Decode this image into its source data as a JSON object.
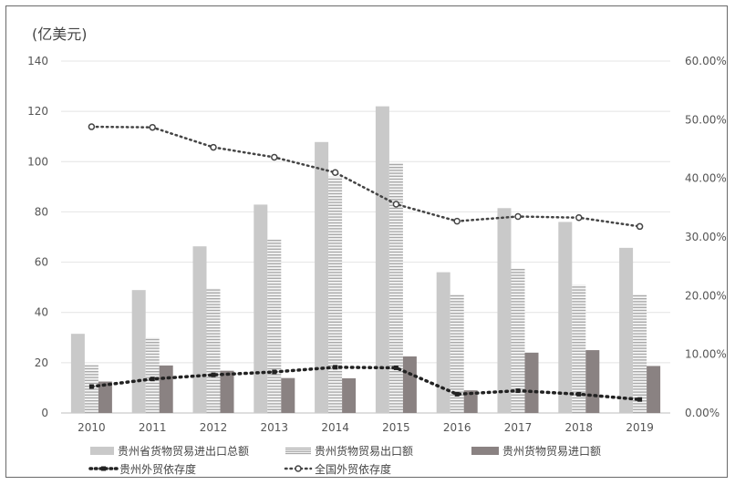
{
  "chart_data": {
    "type": "bar",
    "unit_label": "(亿美元)",
    "categories": [
      "2010",
      "2011",
      "2012",
      "2013",
      "2014",
      "2015",
      "2016",
      "2017",
      "2018",
      "2019"
    ],
    "ylim": [
      0,
      140
    ],
    "y_ticks": [
      "0",
      "20",
      "40",
      "60",
      "80",
      "100",
      "120",
      "140"
    ],
    "y2lim": [
      0,
      60
    ],
    "y2_ticks": [
      "0.00%",
      "10.00%",
      "20.00%",
      "30.00%",
      "40.00%",
      "50.00%",
      "60.00%"
    ],
    "grid": true,
    "legend_position": "bottom",
    "bar_series": [
      {
        "name": "贵州省货物贸易进出口总额",
        "style": "light-solid",
        "color": "#c9c9c9",
        "values": [
          31.5,
          48.9,
          66.3,
          82.9,
          107.8,
          122.0,
          56.0,
          81.5,
          76.0,
          65.7
        ]
      },
      {
        "name": "贵州货物贸易出口额",
        "style": "striped",
        "color": "#bdbdbd",
        "values": [
          19.0,
          30.0,
          49.5,
          69.0,
          94.0,
          99.5,
          47.0,
          57.5,
          51.0,
          47.0
        ]
      },
      {
        "name": "贵州货物贸易进口额",
        "style": "dark-solid",
        "color": "#8a8282",
        "values": [
          12.5,
          18.9,
          16.8,
          13.9,
          13.8,
          22.5,
          9.0,
          24.0,
          25.0,
          18.7
        ]
      }
    ],
    "line_series": [
      {
        "name": "贵州外贸依存度",
        "color": "#222222",
        "axis": "right",
        "values": [
          4.5,
          5.8,
          6.5,
          7.0,
          7.8,
          7.7,
          3.2,
          3.8,
          3.2,
          2.3
        ]
      },
      {
        "name": "全国外贸依存度",
        "color": "#444444",
        "axis": "right",
        "values": [
          48.8,
          48.7,
          45.3,
          43.6,
          41.0,
          35.6,
          32.7,
          33.5,
          33.3,
          31.8
        ]
      }
    ]
  }
}
